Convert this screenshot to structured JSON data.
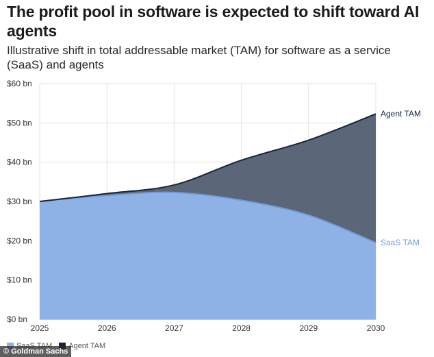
{
  "title": "The profit pool in software is expected to shift toward AI agents",
  "subtitle": "Illustrative shift in total addressable market (TAM) for software as a service (SaaS) and agents",
  "credit": "© Goldman Sachs",
  "colors": {
    "saas": "#8fb2e6",
    "saas_line": "#6f9be0",
    "agent": "#5b6778",
    "agent_line": "#16243f"
  },
  "chart_data": {
    "type": "area",
    "x": [
      "2025",
      "2026",
      "2027",
      "2028",
      "2029",
      "2030"
    ],
    "y_ticks": [
      "$0 bn",
      "$10 bn",
      "$20 bn",
      "$30 bn",
      "$40 bn",
      "$50 bn",
      "$60 bn"
    ],
    "ylim": [
      0,
      60
    ],
    "grid": true,
    "legend_position": "bottom-left",
    "series": [
      {
        "name": "SaaS TAM",
        "values": [
          30,
          31.5,
          32.3,
          30.3,
          26.5,
          19.5
        ]
      },
      {
        "name": "Agent TAM",
        "values": [
          30,
          32,
          34.2,
          40.5,
          45.6,
          52.3
        ]
      }
    ],
    "end_labels": [
      "Agent TAM",
      "SaaS TAM"
    ]
  }
}
